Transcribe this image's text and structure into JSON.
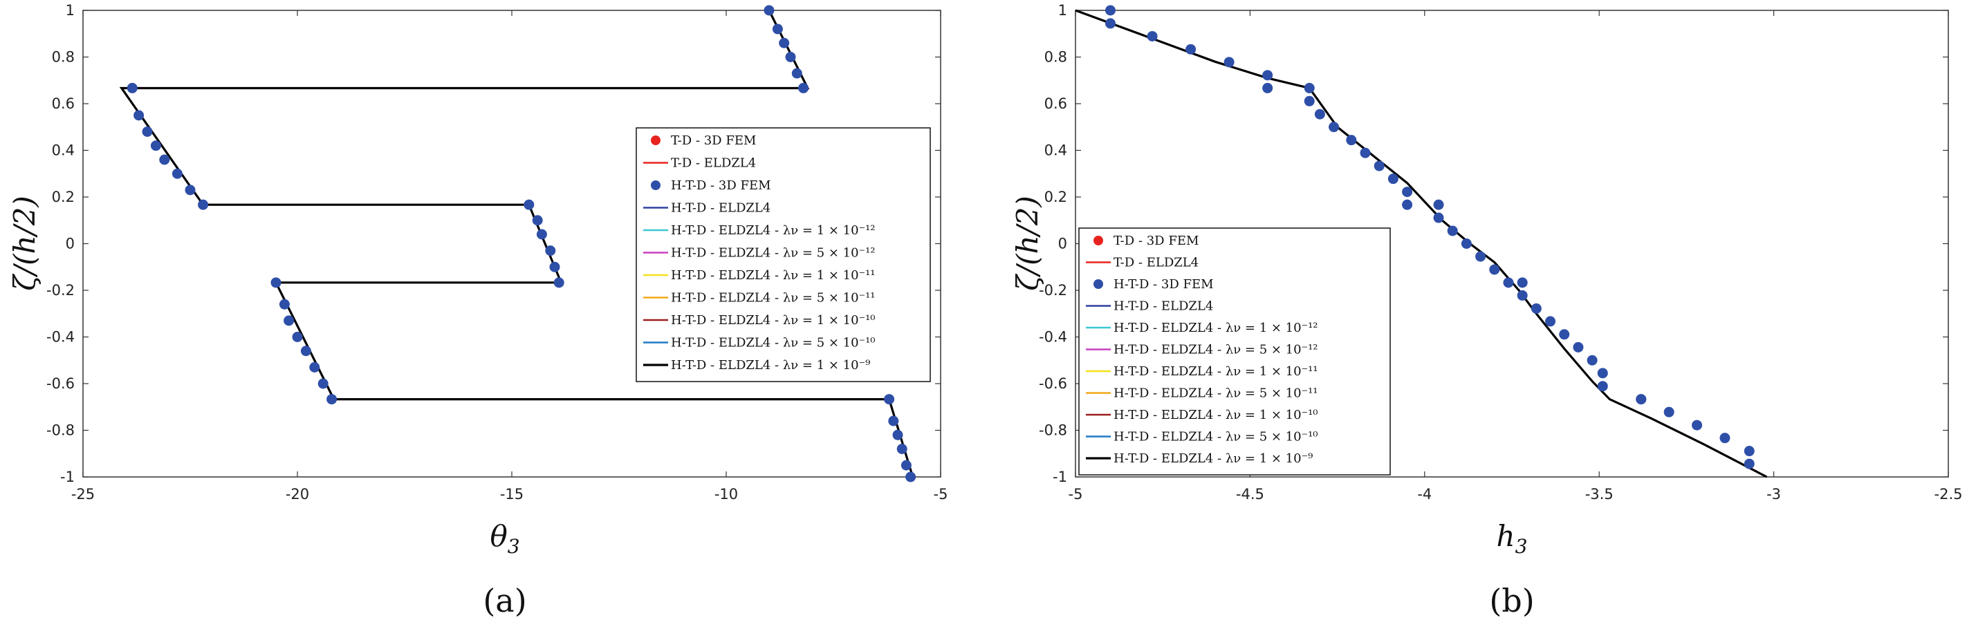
{
  "colors": {
    "marker_td_fem": "#e8231f",
    "marker_htd_fem": "#2e4fa8",
    "curve": "#000000",
    "series_colors": [
      "#e8231f",
      "#e8231f",
      "#2e4fa8",
      "#2e3fa0",
      "#3cc7d3",
      "#c83fc0",
      "#f2e21a",
      "#f2a81c",
      "#9d1e1e",
      "#1f79c4",
      "#000000"
    ]
  },
  "legend_labels": [
    "T-D - 3D FEM",
    "T-D - ELDZL4",
    "H-T-D - 3D FEM",
    "H-T-D - ELDZL4",
    "H-T-D - ELDZL4 - λν = 1 × 10⁻¹²",
    "H-T-D - ELDZL4 - λν = 5 × 10⁻¹²",
    "H-T-D - ELDZL4 - λν = 1 × 10⁻¹¹",
    "H-T-D - ELDZL4 - λν = 5 × 10⁻¹¹",
    "H-T-D - ELDZL4 - λν = 1 × 10⁻¹⁰",
    "H-T-D - ELDZL4 - λν = 5 × 10⁻¹⁰",
    "H-T-D - ELDZL4 - λν = 1 × 10⁻⁹"
  ],
  "chart_data": [
    {
      "type": "line",
      "caption": "(a)",
      "xlabel": "θ",
      "xlabel_sub": "3",
      "ylabel": "ζ/(h/2)",
      "xlim": [
        -25,
        -5
      ],
      "ylim": [
        -1,
        1
      ],
      "xticks": [
        -25,
        -20,
        -15,
        -10,
        -5
      ],
      "yticks": [
        -1,
        -0.8,
        -0.6,
        -0.4,
        -0.2,
        0,
        0.2,
        0.4,
        0.6,
        0.8,
        1
      ],
      "legend_position": "center-right",
      "curve": {
        "name": "H-T-D - ELDZL4 - λν = 1 × 10⁻⁹",
        "x": [
          -5.65,
          -6.2,
          -6.2,
          -19.15,
          -20.5,
          -20.5,
          -13.85,
          -14.6,
          -14.6,
          -22.2,
          -24.1,
          -24.1,
          -8.1,
          -9.0
        ],
        "y": [
          -1,
          -0.667,
          -0.667,
          -0.667,
          -0.1667,
          -0.1667,
          -0.1667,
          0.1667,
          0.1667,
          0.1667,
          0.6667,
          0.6667,
          0.6667,
          1
        ]
      },
      "points": {
        "name": "H-T-D - 3D FEM",
        "x": [
          -5.7,
          -5.8,
          -5.9,
          -6.0,
          -6.1,
          -6.2,
          -19.2,
          -19.4,
          -19.6,
          -19.8,
          -20.0,
          -20.2,
          -20.3,
          -20.5,
          -13.9,
          -14.0,
          -14.1,
          -14.3,
          -14.4,
          -14.6,
          -22.2,
          -22.5,
          -22.8,
          -23.1,
          -23.3,
          -23.5,
          -23.7,
          -23.85,
          -8.2,
          -8.35,
          -8.5,
          -8.65,
          -8.8,
          -9.0
        ],
        "y": [
          -1,
          -0.95,
          -0.88,
          -0.82,
          -0.76,
          -0.667,
          -0.667,
          -0.6,
          -0.53,
          -0.46,
          -0.4,
          -0.33,
          -0.26,
          -0.167,
          -0.167,
          -0.1,
          -0.03,
          0.04,
          0.1,
          0.167,
          0.167,
          0.23,
          0.3,
          0.36,
          0.42,
          0.48,
          0.55,
          0.667,
          0.667,
          0.73,
          0.8,
          0.86,
          0.92,
          1
        ]
      }
    },
    {
      "type": "line",
      "caption": "(b)",
      "xlabel": "h",
      "xlabel_sub": "3",
      "ylabel": "ζ/(h/2)",
      "xlim": [
        -5,
        -2.5
      ],
      "ylim": [
        -1,
        1
      ],
      "xticks": [
        -5,
        -4.5,
        -4,
        -3.5,
        -3,
        -2.5
      ],
      "yticks": [
        -1,
        -0.8,
        -0.6,
        -0.4,
        -0.2,
        0,
        0.2,
        0.4,
        0.6,
        0.8,
        1
      ],
      "legend_position": "bottom-left",
      "curve": {
        "name": "H-T-D - ELDZL4 - λν = 1 × 10⁻⁹",
        "x": [
          -5.0,
          -4.8,
          -4.6,
          -4.45,
          -4.33,
          -4.25,
          -4.15,
          -4.05,
          -3.95,
          -3.87,
          -3.8,
          -3.73,
          -3.68,
          -3.6,
          -3.52,
          -3.47,
          -3.35,
          -3.2,
          -3.02
        ],
        "y": [
          1.0,
          0.89,
          0.78,
          0.71,
          0.667,
          0.5,
          0.38,
          0.26,
          0.1,
          0.0,
          -0.08,
          -0.2,
          -0.3,
          -0.45,
          -0.59,
          -0.667,
          -0.75,
          -0.86,
          -1.0
        ]
      },
      "points": {
        "name": "H-T-D - 3D FEM",
        "x": [
          -4.9,
          -4.9,
          -4.78,
          -4.67,
          -4.56,
          -4.45,
          -4.45,
          -4.33,
          -4.33,
          -4.3,
          -4.26,
          -4.21,
          -4.17,
          -4.13,
          -4.09,
          -4.05,
          -4.05,
          -3.96,
          -3.96,
          -3.92,
          -3.88,
          -3.84,
          -3.8,
          -3.76,
          -3.72,
          -3.72,
          -3.68,
          -3.64,
          -3.6,
          -3.56,
          -3.52,
          -3.49,
          -3.49,
          -3.38,
          -3.38,
          -3.3,
          -3.22,
          -3.14,
          -3.07,
          -3.07
        ],
        "y": [
          1.0,
          0.944,
          0.889,
          0.833,
          0.778,
          0.722,
          0.667,
          0.667,
          0.611,
          0.555,
          0.5,
          0.444,
          0.389,
          0.333,
          0.278,
          0.222,
          0.167,
          0.167,
          0.111,
          0.055,
          0.0,
          -0.055,
          -0.111,
          -0.167,
          -0.167,
          -0.222,
          -0.278,
          -0.333,
          -0.389,
          -0.444,
          -0.5,
          -0.555,
          -0.611,
          -0.667,
          -0.667,
          -0.722,
          -0.778,
          -0.833,
          -0.889,
          -0.944
        ]
      }
    }
  ]
}
